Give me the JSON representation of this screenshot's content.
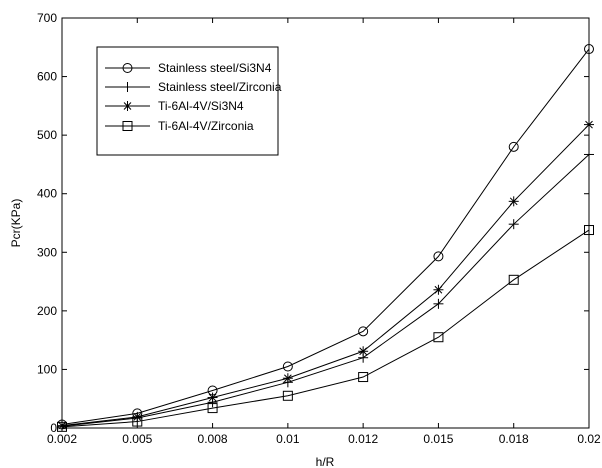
{
  "chart_data": {
    "type": "line",
    "title": "",
    "xlabel": "h/R",
    "ylabel": "Pcr(KPa)",
    "x_ticks": [
      "0.002",
      "0.005",
      "0.008",
      "0.01",
      "0.012",
      "0.015",
      "0.018",
      "0.02"
    ],
    "y_ticks": [
      "0",
      "100",
      "200",
      "300",
      "400",
      "500",
      "600",
      "700"
    ],
    "ylim": [
      0,
      700
    ],
    "grid": false,
    "legend_position": "top-left",
    "series": [
      {
        "name": "Stainless steel/Si3N4",
        "marker": "circle",
        "values": [
          6,
          25,
          64,
          105,
          165,
          293,
          480,
          647
        ]
      },
      {
        "name": "Stainless steel/Zirconia",
        "marker": "plus",
        "values": [
          3,
          17,
          44,
          78,
          120,
          212,
          348,
          467
        ]
      },
      {
        "name": "Ti-6Al-4V/Si3N4",
        "marker": "asterisk",
        "values": [
          4,
          19,
          52,
          85,
          131,
          236,
          387,
          518
        ]
      },
      {
        "name": "Ti-6Al-4V/Zirconia",
        "marker": "square",
        "values": [
          2,
          11,
          34,
          55,
          87,
          155,
          253,
          338
        ]
      }
    ]
  }
}
